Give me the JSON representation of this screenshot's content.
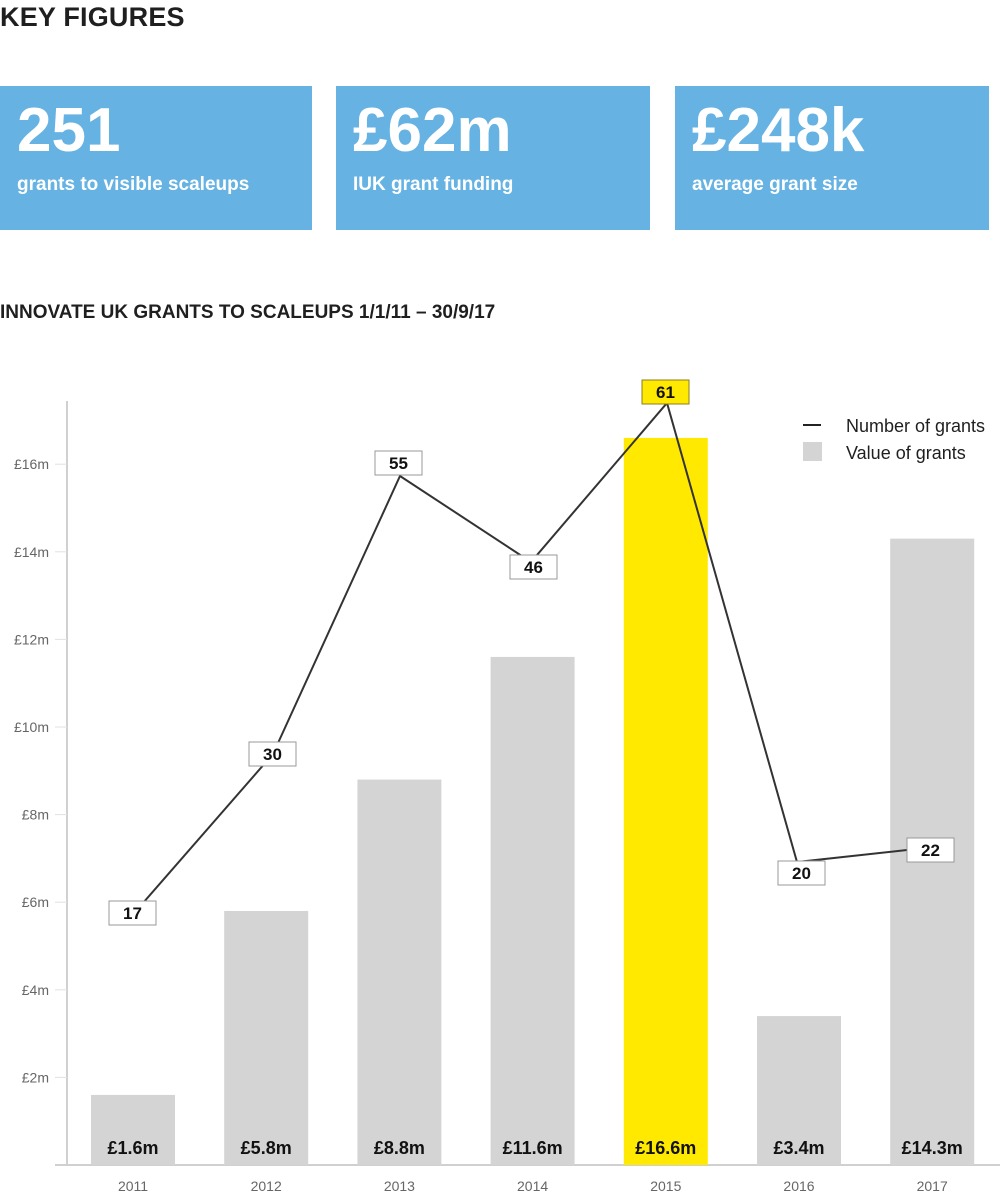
{
  "header": {
    "title": "KEY FIGURES"
  },
  "key_figures": [
    {
      "value": "251",
      "label": "grants to visible scaleups"
    },
    {
      "value": "£62m",
      "label": "IUK grant funding"
    },
    {
      "value": "£248k",
      "label": "average grant size"
    }
  ],
  "colors": {
    "box_blue": "#65b2e3",
    "bar_grey": "#d4d4d4",
    "highlight_yellow": "#ffe900",
    "line": "#333333"
  },
  "chart_data": {
    "type": "bar",
    "title": "INNOVATE UK GRANTS TO SCALEUPS 1/1/11 – 30/9/17",
    "categories": [
      "2011",
      "2012",
      "2013",
      "2014",
      "2015",
      "2016",
      "2017"
    ],
    "series": [
      {
        "name": "Value of grants",
        "type": "bar",
        "unit": "£m",
        "values": [
          1.6,
          5.8,
          8.8,
          11.6,
          16.6,
          3.4,
          14.3
        ],
        "labels": [
          "£1.6m",
          "£5.8m",
          "£8.8m",
          "£11.6m",
          "£16.6m",
          "£3.4m",
          "£14.3m"
        ],
        "highlight_index": 4
      },
      {
        "name": "Number of grants",
        "type": "line",
        "values": [
          17,
          30,
          55,
          46,
          61,
          20,
          22
        ]
      }
    ],
    "yticks": [
      "£2m",
      "£4m",
      "£6m",
      "£8m",
      "£10m",
      "£12m",
      "£14m",
      "£16m"
    ],
    "ylim": [
      0,
      17
    ],
    "xlabel": "",
    "ylabel": "",
    "legend": [
      "Number of grants",
      "Value of grants"
    ],
    "legend_position": "top-right",
    "grid": false
  }
}
